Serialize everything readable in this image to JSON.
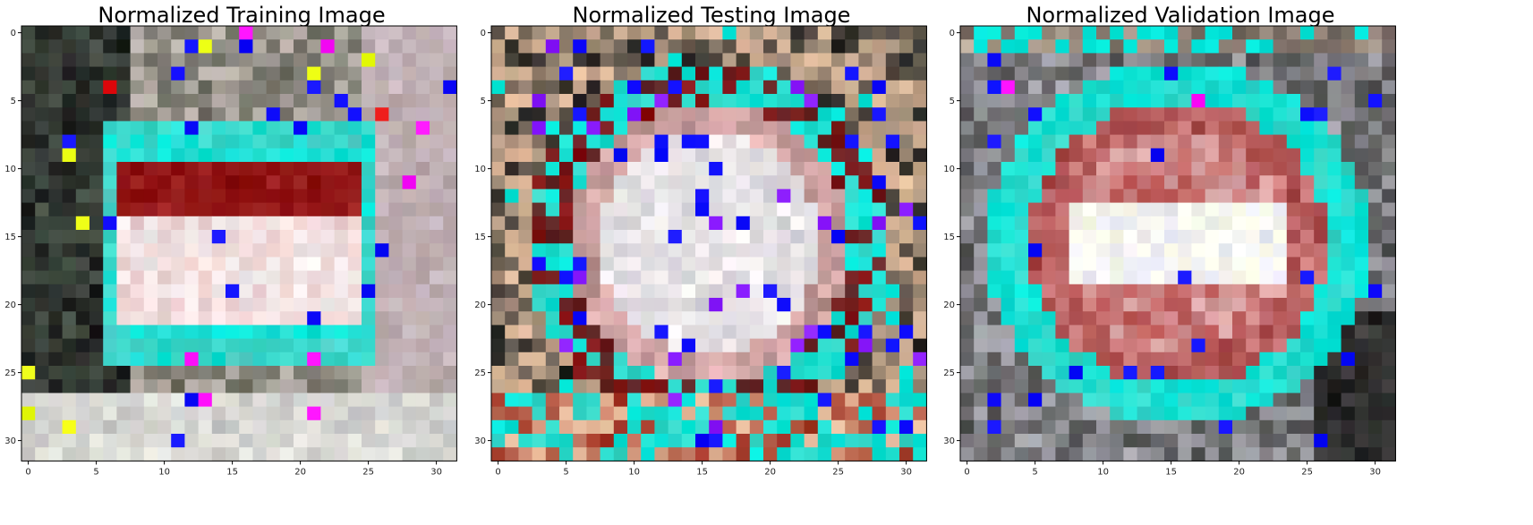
{
  "panels": [
    {
      "title": "Normalized Training Image",
      "grid_size": 32,
      "x_ticks": [
        "0",
        "5",
        "10",
        "15",
        "20",
        "25",
        "30"
      ],
      "y_ticks": [
        "0",
        "5",
        "10",
        "15",
        "20",
        "25",
        "30"
      ],
      "scene": "training"
    },
    {
      "title": "Normalized Testing Image",
      "grid_size": 32,
      "x_ticks": [
        "0",
        "5",
        "10",
        "15",
        "20",
        "25",
        "30"
      ],
      "y_ticks": [
        "0",
        "5",
        "10",
        "15",
        "20",
        "25",
        "30"
      ],
      "scene": "testing"
    },
    {
      "title": "Normalized Validation Image",
      "grid_size": 32,
      "x_ticks": [
        "0",
        "5",
        "10",
        "15",
        "20",
        "25",
        "30"
      ],
      "y_ticks": [
        "0",
        "5",
        "10",
        "15",
        "20",
        "25",
        "30"
      ],
      "scene": "validation"
    }
  ],
  "palette": {
    "cyan": "#00e5d8",
    "teal": "#3ad6c8",
    "blue": "#1010ff",
    "violet": "#8a1cff",
    "magenta": "#ff10ff",
    "red": "#e01010",
    "dark_red": "#8a1010",
    "yellow": "#e8ff10",
    "white": "#f5f0f0",
    "pink": "#e8b8b8",
    "peach": "#e8c0a0",
    "tan": "#a08c78",
    "gray": "#8a8a8a",
    "dark": "#1a1a1a"
  }
}
